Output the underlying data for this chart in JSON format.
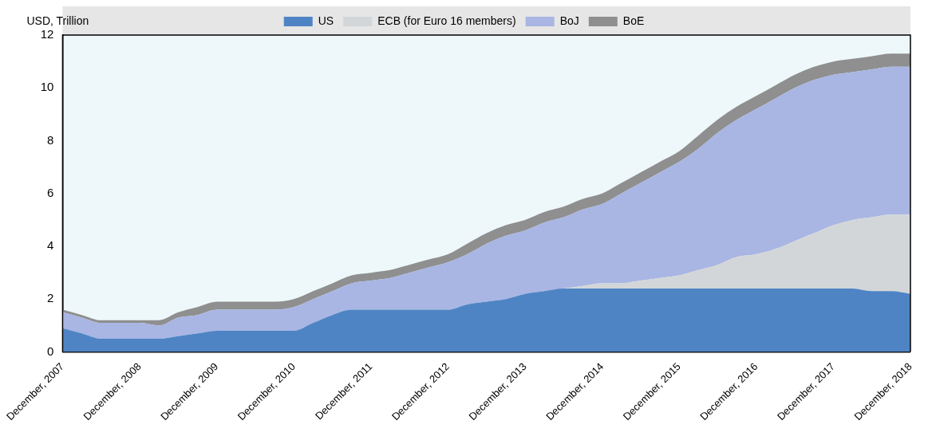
{
  "chart_data": {
    "type": "area",
    "ylabel": "USD, Trillion",
    "stacked": true,
    "legend": "top",
    "categories": [
      "December, 2007",
      null,
      null,
      null,
      "December, 2008",
      null,
      null,
      null,
      "December, 2009",
      null,
      null,
      null,
      "December, 2010",
      null,
      null,
      null,
      "December, 2011",
      null,
      null,
      null,
      "December, 2012",
      null,
      null,
      null,
      "December, 2013",
      null,
      null,
      null,
      "December, 2014",
      null,
      null,
      null,
      "December, 2015",
      null,
      null,
      null,
      "December, 2016",
      null,
      null,
      null,
      "December, 2017",
      null,
      null,
      null,
      "December, 2018"
    ],
    "series": [
      {
        "name": "US",
        "color": "#4f84c4",
        "values": [
          0.9,
          0.7,
          0.5,
          0.5,
          0.5,
          0.5,
          0.6,
          0.7,
          0.8,
          0.8,
          0.8,
          0.8,
          0.8,
          1.1,
          1.4,
          1.6,
          1.6,
          1.6,
          1.6,
          1.6,
          1.6,
          1.8,
          1.9,
          2.0,
          2.2,
          2.3,
          2.4,
          2.4,
          2.4,
          2.4,
          2.4,
          2.4,
          2.4,
          2.4,
          2.4,
          2.4,
          2.4,
          2.4,
          2.4,
          2.4,
          2.4,
          2.4,
          2.3,
          2.3,
          2.2
        ]
      },
      {
        "name": "ECB (for Euro 16 members)",
        "color": "#d3d6d8",
        "values": [
          0,
          0,
          0,
          0,
          0,
          0,
          0,
          0,
          0,
          0,
          0,
          0,
          0,
          0,
          0,
          0,
          0,
          0,
          0,
          0,
          0,
          0,
          0,
          0,
          0,
          0,
          0,
          0.1,
          0.2,
          0.2,
          0.3,
          0.4,
          0.5,
          0.7,
          0.9,
          1.2,
          1.3,
          1.5,
          1.8,
          2.1,
          2.4,
          2.6,
          2.8,
          2.9,
          3.0
        ]
      },
      {
        "name": "BoJ",
        "color": "#a9b6e3",
        "values": [
          0.6,
          0.6,
          0.6,
          0.6,
          0.6,
          0.5,
          0.7,
          0.7,
          0.8,
          0.8,
          0.8,
          0.8,
          0.9,
          0.9,
          0.9,
          1.0,
          1.1,
          1.2,
          1.4,
          1.6,
          1.8,
          1.9,
          2.2,
          2.4,
          2.4,
          2.6,
          2.7,
          2.9,
          3.0,
          3.4,
          3.7,
          4.0,
          4.3,
          4.6,
          5.0,
          5.2,
          5.5,
          5.7,
          5.8,
          5.8,
          5.7,
          5.6,
          5.6,
          5.6,
          5.6
        ]
      },
      {
        "name": "BoE",
        "color": "#8f8f8f",
        "values": [
          0.1,
          0.1,
          0.1,
          0.1,
          0.1,
          0.2,
          0.2,
          0.3,
          0.3,
          0.3,
          0.3,
          0.3,
          0.3,
          0.3,
          0.3,
          0.3,
          0.3,
          0.3,
          0.3,
          0.3,
          0.3,
          0.4,
          0.4,
          0.4,
          0.4,
          0.4,
          0.4,
          0.4,
          0.4,
          0.4,
          0.4,
          0.4,
          0.4,
          0.5,
          0.5,
          0.5,
          0.5,
          0.5,
          0.5,
          0.5,
          0.5,
          0.5,
          0.5,
          0.5,
          0.5
        ]
      }
    ],
    "ylim": [
      0,
      12
    ],
    "yticks": [
      0,
      2,
      4,
      6,
      8,
      10,
      12
    ]
  }
}
